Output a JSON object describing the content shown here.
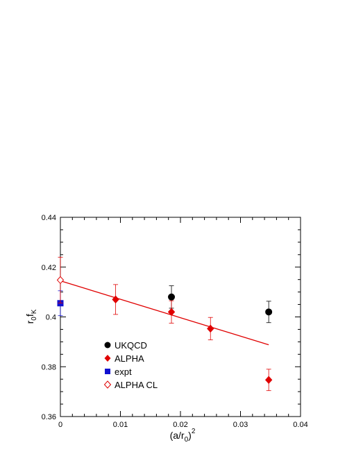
{
  "chart_data": {
    "type": "scatter",
    "xlabel": "(a/r0)^2",
    "xlabel_parts": {
      "base": "(a/r",
      "sub": "0",
      "close": ")",
      "sup": "2"
    },
    "ylabel": "r0fK",
    "ylabel_parts": {
      "r": "r",
      "r_sub": "0",
      "f": "f",
      "f_sub": "K"
    },
    "xlim": [
      0,
      0.04
    ],
    "ylim": [
      0.36,
      0.44
    ],
    "x_ticks": [
      0,
      0.01,
      0.02,
      0.03,
      0.04
    ],
    "x_tick_labels": [
      "0",
      "0.01",
      "0.02",
      "0.03",
      "0.04"
    ],
    "y_ticks": [
      0.36,
      0.38,
      0.4,
      0.42,
      0.44
    ],
    "y_tick_labels": [
      "0.36",
      "0.38",
      "0.4",
      "0.42",
      "0.44"
    ],
    "grid": false,
    "legend_position": "bottom-left",
    "series": [
      {
        "name": "UKQCD",
        "marker": "circle",
        "filled": true,
        "color": "#000000",
        "points": [
          {
            "x": 0.0185,
            "y": 0.408,
            "err": 0.0045
          },
          {
            "x": 0.0347,
            "y": 0.402,
            "err": 0.0043
          }
        ]
      },
      {
        "name": "ALPHA",
        "marker": "diamond",
        "filled": true,
        "color": "#e00000",
        "points": [
          {
            "x": 0.0092,
            "y": 0.407,
            "err": 0.006
          },
          {
            "x": 0.0185,
            "y": 0.402,
            "err": 0.0045
          },
          {
            "x": 0.025,
            "y": 0.3953,
            "err": 0.0045
          },
          {
            "x": 0.0347,
            "y": 0.3747,
            "err": 0.0043
          }
        ]
      },
      {
        "name": "expt",
        "marker": "square",
        "filled": true,
        "color": "#1010d0",
        "points": [
          {
            "x": 0.0,
            "y": 0.4055,
            "err": 0.005
          }
        ]
      },
      {
        "name": "ALPHA CL",
        "marker": "diamond",
        "filled": false,
        "color": "#e00000",
        "points": [
          {
            "x": 0.0,
            "y": 0.4148,
            "err": 0.0092
          }
        ]
      }
    ],
    "fit_line": {
      "color": "#e00000",
      "x": [
        0.0,
        0.0347
      ],
      "y": [
        0.4145,
        0.3888
      ]
    }
  }
}
